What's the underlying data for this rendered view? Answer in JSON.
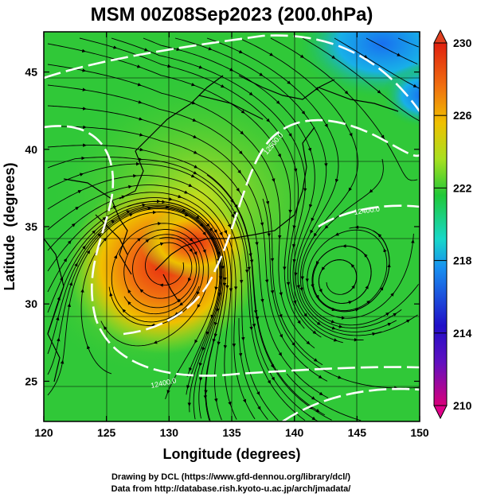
{
  "chart_data": {
    "type": "heatmap",
    "title": "MSM 00Z08Sep2023 (200.0hPa)",
    "xlabel": "Longitude (degrees)",
    "ylabel": "Latitude  (degrees)",
    "xlim": [
      120,
      150
    ],
    "ylim": [
      22.4,
      47.6
    ],
    "x_ticks": [
      "120",
      "125",
      "130",
      "135",
      "140",
      "145",
      "150"
    ],
    "y_ticks": [
      "25",
      "30",
      "35",
      "40",
      "45"
    ],
    "colorbar": {
      "range": [
        210,
        230
      ],
      "tick_labels": [
        "230",
        "226",
        "222",
        "218",
        "214",
        "210"
      ],
      "colors": [
        "#d9007a",
        "#2010c8",
        "#1890f0",
        "#18d8c8",
        "#20c838",
        "#a8e020",
        "#f0c000",
        "#f07010",
        "#e02010"
      ]
    },
    "features": {
      "warm_max": {
        "lon": 130.5,
        "lat": 33.5,
        "value": 227
      },
      "cold_region": {
        "lon": 145,
        "lat": 47,
        "value": 217
      },
      "cyclonic_eddy": {
        "lon": 143.5,
        "lat": 31.5
      },
      "contour_lines": [
        "12400.0",
        "12500.0",
        "12300.0"
      ]
    }
  },
  "footer": {
    "line1": "Drawing by DCL (https://www.gfd-dennou.org/library/dcl/)",
    "line2": "Data from http://database.rish.kyoto-u.ac.jp/arch/jmadata/"
  }
}
